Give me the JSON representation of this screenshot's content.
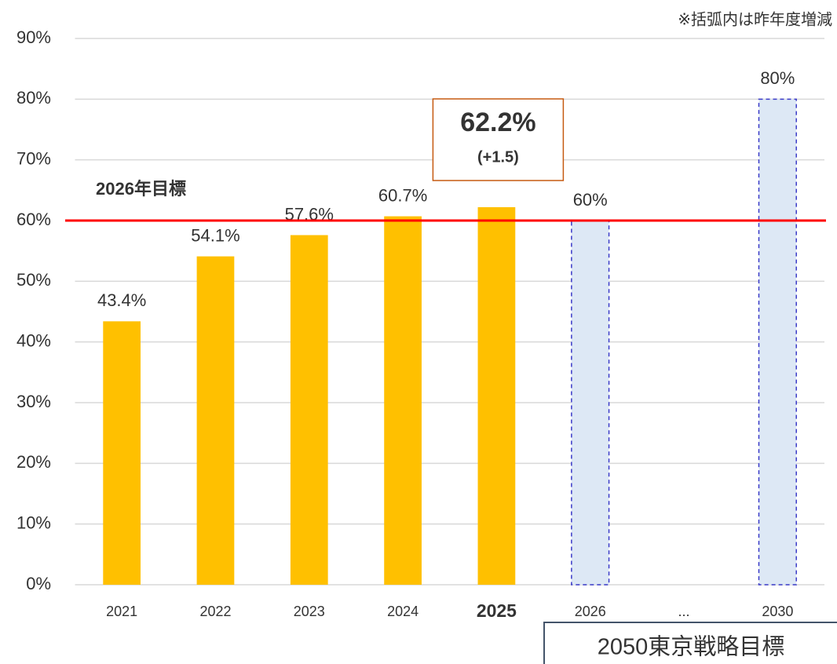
{
  "chart_data": {
    "type": "bar",
    "note": "※括弧内は昨年度増減",
    "categories": [
      "2021",
      "2022",
      "2023",
      "2024",
      "2025",
      "2026",
      "...",
      "2030"
    ],
    "highlight_index": 4,
    "series": [
      {
        "color": "#ffc000",
        "style": "solid",
        "values": [
          43.4,
          54.1,
          57.6,
          60.7,
          62.2,
          null,
          null,
          null
        ],
        "value_labels": [
          "43.4%",
          "54.1%",
          "57.6%",
          "60.7%",
          "62.2%",
          null,
          null,
          null
        ],
        "change_labels": [
          null,
          null,
          null,
          null,
          "(+1.5)",
          null,
          null,
          null
        ]
      },
      {
        "color": "#dde8f5",
        "edge_color": "#3a3ac8",
        "style": "dashed",
        "values": [
          null,
          null,
          null,
          null,
          null,
          60,
          null,
          80
        ],
        "value_labels": [
          null,
          null,
          null,
          null,
          null,
          "60%",
          null,
          "80%"
        ]
      }
    ],
    "reference_line": {
      "value": 60,
      "label": "2026年目標",
      "color": "#ff0000"
    },
    "box_label": "2050東京戦略目標",
    "ylim": [
      0,
      90
    ],
    "yticks": [
      {
        "value": 0,
        "label": "0%"
      },
      {
        "value": 10,
        "label": "10%"
      },
      {
        "value": 20,
        "label": "20%"
      },
      {
        "value": 30,
        "label": "30%"
      },
      {
        "value": 40,
        "label": "40%"
      },
      {
        "value": 50,
        "label": "50%"
      },
      {
        "value": 60,
        "label": "60%"
      },
      {
        "value": 70,
        "label": "70%"
      },
      {
        "value": 80,
        "label": "80%"
      },
      {
        "value": 90,
        "label": "90%"
      }
    ],
    "grid": true
  }
}
